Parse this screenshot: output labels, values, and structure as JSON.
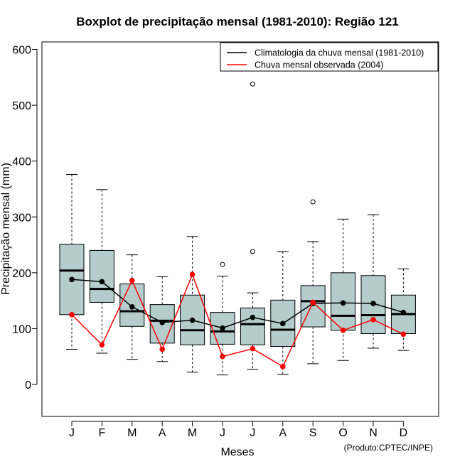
{
  "chart_data": {
    "type": "boxplot",
    "title": "Boxplot de precipitação mensal (1981-2010): Região 121",
    "xlabel": "Meses",
    "ylabel": "Precipitação mensal (mm)",
    "credit": "(Produto:CPTEC/INPE)",
    "ylim": [
      -58,
      613
    ],
    "yticks": [
      0,
      100,
      200,
      300,
      400,
      500,
      600
    ],
    "categories": [
      "J",
      "F",
      "M",
      "A",
      "M",
      "J",
      "J",
      "A",
      "S",
      "O",
      "N",
      "D"
    ],
    "boxes": [
      {
        "min": 63,
        "q1": 125,
        "median": 204,
        "q3": 251,
        "max": 376,
        "outliers": []
      },
      {
        "min": 56,
        "q1": 147,
        "median": 171,
        "q3": 240,
        "max": 349,
        "outliers": []
      },
      {
        "min": 45,
        "q1": 104,
        "median": 131,
        "q3": 180,
        "max": 232,
        "outliers": []
      },
      {
        "min": 41,
        "q1": 74,
        "median": 114,
        "q3": 143,
        "max": 193,
        "outliers": []
      },
      {
        "min": 22,
        "q1": 71,
        "median": 97,
        "q3": 160,
        "max": 265,
        "outliers": []
      },
      {
        "min": 17,
        "q1": 72,
        "median": 95,
        "q3": 129,
        "max": 194,
        "outliers": [
          215
        ]
      },
      {
        "min": 27,
        "q1": 71,
        "median": 108,
        "q3": 137,
        "max": 164,
        "outliers": [
          238,
          538
        ]
      },
      {
        "min": 18,
        "q1": 68,
        "median": 98,
        "q3": 151,
        "max": 238,
        "outliers": []
      },
      {
        "min": 37,
        "q1": 103,
        "median": 149,
        "q3": 177,
        "max": 256,
        "outliers": [
          327
        ]
      },
      {
        "min": 43,
        "q1": 97,
        "median": 123,
        "q3": 200,
        "max": 296,
        "outliers": []
      },
      {
        "min": 65,
        "q1": 91,
        "median": 124,
        "q3": 195,
        "max": 304,
        "outliers": []
      },
      {
        "min": 61,
        "q1": 91,
        "median": 126,
        "q3": 160,
        "max": 207,
        "outliers": []
      }
    ],
    "series": [
      {
        "name": "Climatologia da chuva mensal (1981-2010)",
        "color": "#000000",
        "values": [
          188,
          184,
          139,
          111,
          115,
          101,
          120,
          109,
          145,
          146,
          145,
          129
        ]
      },
      {
        "name": "Chuva mensal observada (2004)",
        "color": "#ff0000",
        "values": [
          125,
          71,
          186,
          63,
          197,
          50,
          64,
          32,
          147,
          97,
          116,
          90
        ]
      }
    ],
    "box_fill": "#b4cccc",
    "legend_position": "top-right"
  }
}
